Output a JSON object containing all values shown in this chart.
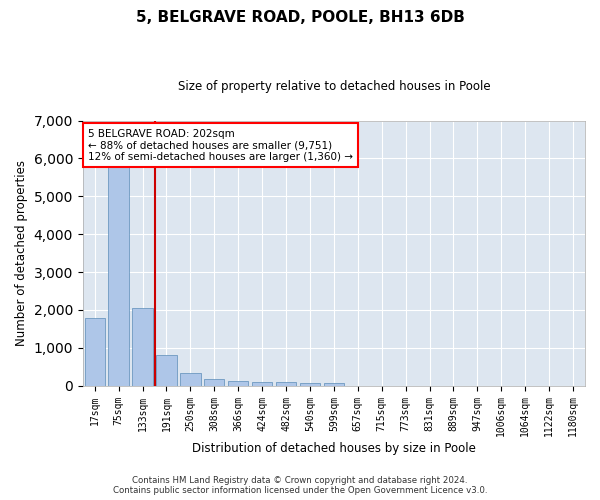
{
  "title": "5, BELGRAVE ROAD, POOLE, BH13 6DB",
  "subtitle": "Size of property relative to detached houses in Poole",
  "xlabel": "Distribution of detached houses by size in Poole",
  "ylabel": "Number of detached properties",
  "categories": [
    "17sqm",
    "75sqm",
    "133sqm",
    "191sqm",
    "250sqm",
    "308sqm",
    "366sqm",
    "424sqm",
    "482sqm",
    "540sqm",
    "599sqm",
    "657sqm",
    "715sqm",
    "773sqm",
    "831sqm",
    "889sqm",
    "947sqm",
    "1006sqm",
    "1064sqm",
    "1122sqm",
    "1180sqm"
  ],
  "values": [
    1780,
    5800,
    2060,
    820,
    340,
    185,
    120,
    100,
    85,
    70,
    60,
    0,
    0,
    0,
    0,
    0,
    0,
    0,
    0,
    0,
    0
  ],
  "bar_color": "#aec6e8",
  "bar_edgecolor": "#5b8db8",
  "background_color": "#dde6f0",
  "ylim": [
    0,
    7000
  ],
  "yticks": [
    0,
    1000,
    2000,
    3000,
    4000,
    5000,
    6000,
    7000
  ],
  "vline_x": 2.5,
  "vline_color": "#cc0000",
  "annotation_text": "5 BELGRAVE ROAD: 202sqm\n← 88% of detached houses are smaller (9,751)\n12% of semi-detached houses are larger (1,360) →",
  "footer_line1": "Contains HM Land Registry data © Crown copyright and database right 2024.",
  "footer_line2": "Contains public sector information licensed under the Open Government Licence v3.0."
}
